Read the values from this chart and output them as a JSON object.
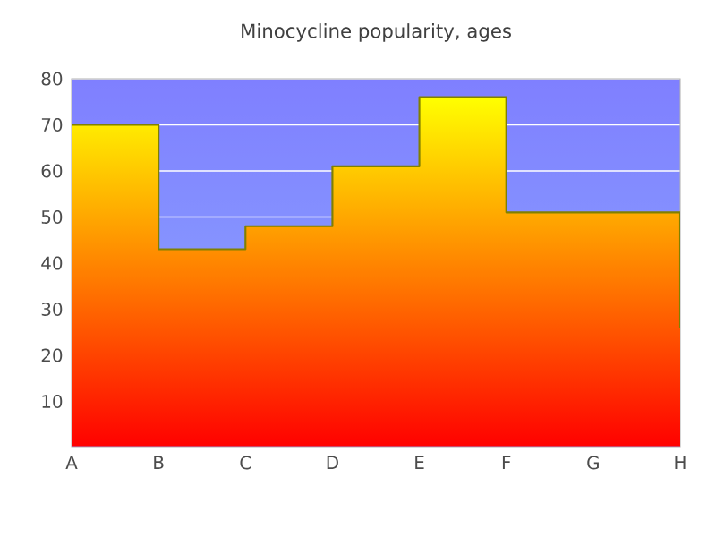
{
  "chart_data": {
    "type": "step",
    "title": "Minocycline popularity, ages",
    "categories": [
      "A",
      "B",
      "C",
      "D",
      "E",
      "F",
      "G",
      "H"
    ],
    "series": [
      {
        "color": "#808000",
        "values": [
          70,
          43,
          48,
          61,
          76,
          51,
          51,
          26
        ]
      }
    ],
    "ylim": [
      0,
      80
    ],
    "yticks": [
      10,
      20,
      30,
      40,
      50,
      60,
      70,
      80
    ],
    "grid": "y"
  }
}
